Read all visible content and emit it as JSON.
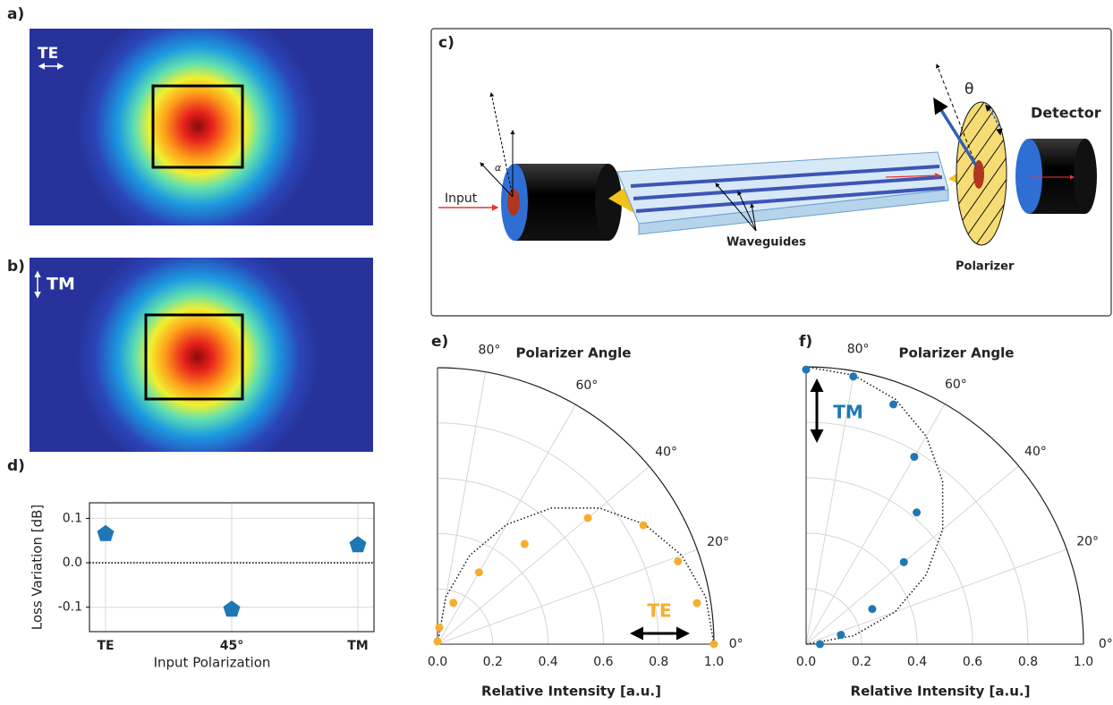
{
  "panels": {
    "a": {
      "label": "a)",
      "mode": "TE"
    },
    "b": {
      "label": "b)",
      "mode": "TM"
    },
    "c": {
      "label": "c)",
      "input": "Input",
      "waveguides": "Waveguides",
      "polarizer": "Polarizer",
      "detector": "Detector",
      "theta": "θ",
      "alpha": "α"
    }
  },
  "chart_data": [
    {
      "type": "scatter",
      "panel_label": "d)",
      "categories": [
        "TE",
        "45°",
        "TM"
      ],
      "values": [
        0.065,
        -0.105,
        0.04
      ],
      "color": "#1f77b4",
      "marker": "pentagon",
      "ylim": [
        -0.155,
        0.135
      ],
      "yticks": [
        -0.1,
        {
          "value": 0,
          "label": "0.0"
        },
        0.1
      ],
      "reference_line": 0,
      "grid": true,
      "xlabel": "Input Polarization",
      "ylabel": "Loss Variation [dB]"
    },
    {
      "type": "polar",
      "panel_label": "e)",
      "title": "Polarizer Angle",
      "xlabel": "Relative Intensity [a.u.]",
      "rlim": [
        0,
        1
      ],
      "rticks": [
        {
          "value": 0,
          "label": "0.0"
        },
        0.2,
        0.4,
        0.6,
        0.8,
        {
          "value": 1,
          "label": "1.0"
        }
      ],
      "thetalim": [
        0,
        90
      ],
      "thetaticks": [
        {
          "value": 0,
          "label": "0°"
        },
        {
          "value": 20,
          "label": "20°"
        },
        {
          "value": 40,
          "label": "40°"
        },
        {
          "value": 60,
          "label": "60°"
        },
        {
          "value": 80,
          "label": "80°"
        }
      ],
      "points": {
        "color": "#f5ae2e",
        "theta": [
          0,
          9,
          19,
          30,
          40,
          49,
          60,
          69,
          84,
          90
        ],
        "r": [
          1.0,
          0.95,
          0.92,
          0.86,
          0.71,
          0.48,
          0.3,
          0.16,
          0.06,
          0.01
        ]
      },
      "fit": {
        "theta": [
          0,
          10,
          20,
          30,
          40,
          50,
          60,
          70,
          80,
          90
        ],
        "r": [
          1.0,
          0.985,
          0.94,
          0.866,
          0.766,
          0.643,
          0.5,
          0.342,
          0.174,
          0.0
        ]
      },
      "annotation": {
        "text": "TE",
        "color": "#f5ae2e"
      }
    },
    {
      "type": "polar",
      "panel_label": "f)",
      "title": "Polarizer Angle",
      "xlabel": "Relative Intensity [a.u.]",
      "rlim": [
        0,
        1
      ],
      "rticks": [
        {
          "value": 0,
          "label": "0.0"
        },
        0.2,
        0.4,
        0.6,
        0.8,
        {
          "value": 1,
          "label": "1.0"
        }
      ],
      "thetalim": [
        0,
        90
      ],
      "thetaticks": [
        {
          "value": 0,
          "label": "0°"
        },
        {
          "value": 20,
          "label": "20°"
        },
        {
          "value": 40,
          "label": "40°"
        },
        {
          "value": 60,
          "label": "60°"
        },
        {
          "value": 80,
          "label": "80°"
        }
      ],
      "points": {
        "color": "#1f77b4",
        "theta": [
          0,
          15,
          28,
          40,
          50,
          60,
          70,
          80,
          90
        ],
        "r": [
          0.05,
          0.13,
          0.27,
          0.46,
          0.62,
          0.78,
          0.92,
          0.98,
          0.99
        ]
      },
      "fit": {
        "theta": [
          0,
          10,
          20,
          30,
          40,
          50,
          60,
          70,
          80,
          90
        ],
        "r": [
          0.0,
          0.174,
          0.342,
          0.5,
          0.643,
          0.766,
          0.866,
          0.94,
          0.985,
          1.0
        ]
      },
      "annotation": {
        "text": "TM",
        "color": "#1f77b4"
      }
    }
  ]
}
